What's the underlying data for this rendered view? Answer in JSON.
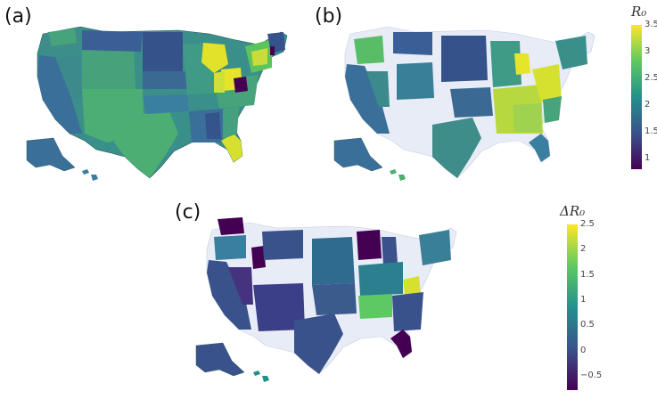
{
  "panels": [
    {
      "label": "(a)",
      "colormap": "viridis"
    },
    {
      "label": "(b)",
      "colormap": "viridis"
    },
    {
      "label": "(c)",
      "colormap": "viridis"
    }
  ],
  "colorbars": [
    {
      "title": "R₀",
      "ticks": [
        "3.5",
        "3",
        "2.5",
        "2",
        "1.5",
        "1"
      ],
      "range": [
        0.9,
        3.5
      ],
      "for_panels": [
        "(a)",
        "(b)"
      ]
    },
    {
      "title": "ΔR₀",
      "ticks": [
        "2.5",
        "2",
        "1.5",
        "1",
        "0.5",
        "0",
        "−0.5"
      ],
      "range": [
        -0.8,
        2.5
      ],
      "for_panels": [
        "(c)"
      ]
    }
  ],
  "colors": {
    "low": "#440154",
    "mid_low": "#3b528b",
    "mid": "#21918c",
    "mid_high": "#5ec962",
    "high": "#fde725",
    "missing": "#e8ecf6"
  }
}
